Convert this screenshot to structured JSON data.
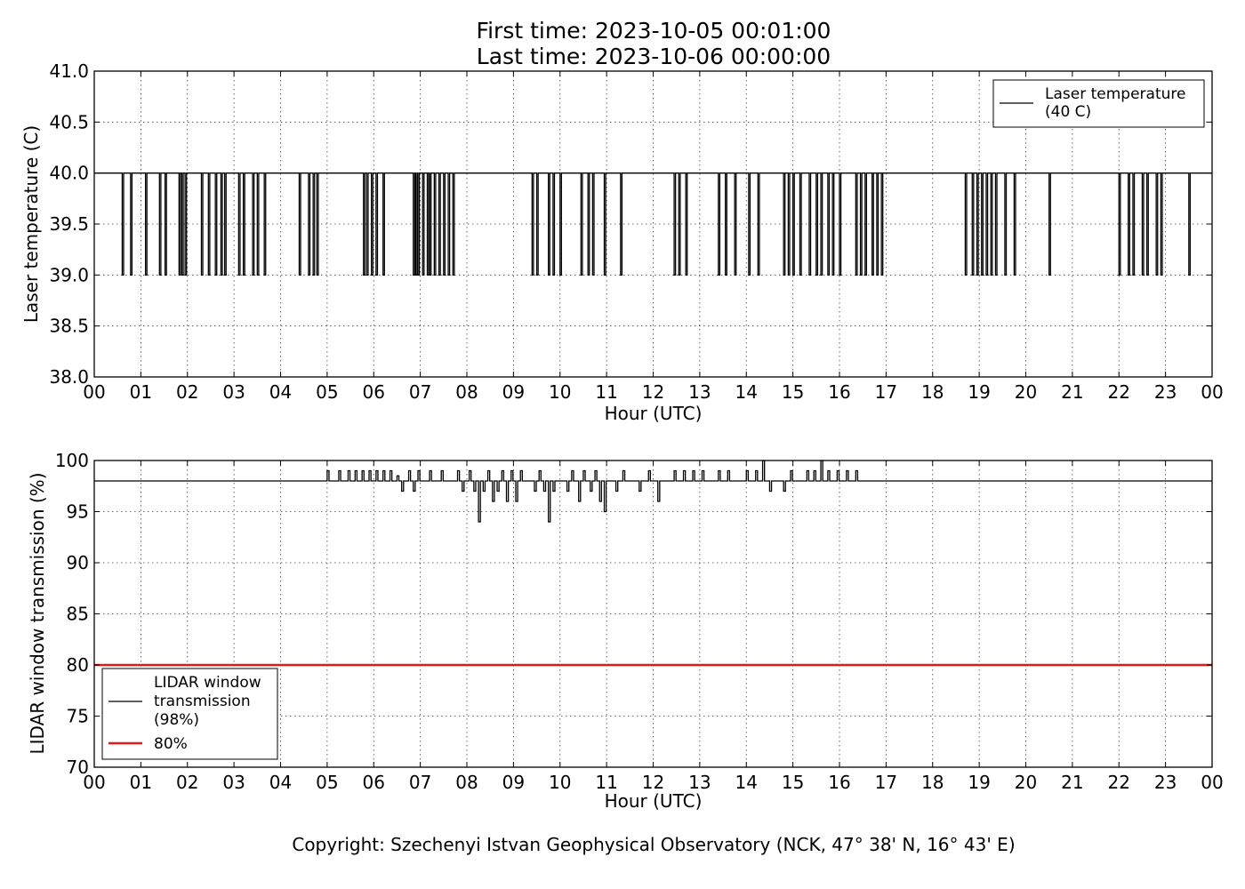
{
  "title": {
    "line1": "First time: 2023-10-05 00:01:00",
    "line2": "Last time: 2023-10-06 00:00:00"
  },
  "copyright": "Copyright: Szechenyi Istvan Geophysical Observatory (NCK, 47° 38' N, 16° 43' E)",
  "chart_data": [
    {
      "type": "line",
      "xlabel": "Hour (UTC)",
      "ylabel": "Laser temperature (C)",
      "xlim": [
        0,
        24
      ],
      "ylim": [
        38.0,
        41.0
      ],
      "x_ticks": [
        "00",
        "01",
        "02",
        "03",
        "04",
        "05",
        "06",
        "07",
        "08",
        "09",
        "10",
        "11",
        "12",
        "13",
        "14",
        "15",
        "16",
        "17",
        "18",
        "19",
        "20",
        "21",
        "22",
        "23",
        "00"
      ],
      "y_ticks": [
        "38.0",
        "38.5",
        "39.0",
        "39.5",
        "40.0",
        "40.5",
        "41.0"
      ],
      "grid": true,
      "legend_position": "top-right",
      "baseline": 40.0,
      "dip_value": 39.0,
      "series": [
        {
          "name": "Laser temperature (40 C)",
          "name_lines": [
            "Laser temperature",
            "(40 C)"
          ],
          "color": "#000000",
          "dips_hours": [
            0.6,
            0.78,
            1.1,
            1.4,
            1.52,
            1.82,
            1.88,
            1.95,
            2.3,
            2.45,
            2.6,
            2.72,
            2.8,
            3.1,
            3.2,
            3.4,
            3.5,
            3.65,
            4.4,
            4.6,
            4.7,
            4.78,
            5.78,
            5.85,
            5.95,
            6.05,
            6.2,
            6.85,
            6.9,
            6.95,
            7.05,
            7.15,
            7.2,
            7.3,
            7.4,
            7.5,
            7.6,
            7.7,
            9.4,
            9.5,
            9.75,
            9.85,
            10.0,
            10.45,
            10.6,
            10.7,
            10.95,
            11.3,
            12.45,
            12.55,
            12.7,
            13.4,
            13.55,
            13.75,
            14.05,
            14.25,
            14.8,
            14.9,
            15.0,
            15.15,
            15.35,
            15.5,
            15.6,
            15.75,
            15.85,
            16.0,
            16.35,
            16.45,
            16.55,
            16.7,
            16.8,
            16.9,
            18.7,
            18.85,
            18.95,
            19.05,
            19.15,
            19.25,
            19.35,
            19.55,
            19.75,
            20.5,
            22.0,
            22.2,
            22.3,
            22.5,
            22.6,
            22.8,
            22.9,
            23.5
          ]
        }
      ]
    },
    {
      "type": "line",
      "xlabel": "Hour (UTC)",
      "ylabel": "LIDAR window transmission (%)",
      "xlim": [
        0,
        24
      ],
      "ylim": [
        70,
        100
      ],
      "x_ticks": [
        "00",
        "01",
        "02",
        "03",
        "04",
        "05",
        "06",
        "07",
        "08",
        "09",
        "10",
        "11",
        "12",
        "13",
        "14",
        "15",
        "16",
        "17",
        "18",
        "19",
        "20",
        "21",
        "22",
        "23",
        "00"
      ],
      "y_ticks": [
        "70",
        "75",
        "80",
        "85",
        "90",
        "95",
        "100"
      ],
      "grid": true,
      "legend_position": "lower-left",
      "baseline": 98,
      "active_hours": [
        4.95,
        16.45
      ],
      "series": [
        {
          "name": "LIDAR window transmission (98%)",
          "name_lines": [
            "LIDAR window",
            "transmission",
            "(98%)"
          ],
          "color": "#000000",
          "deviations": [
            [
              5.0,
              99
            ],
            [
              5.25,
              99
            ],
            [
              5.45,
              99
            ],
            [
              5.6,
              99
            ],
            [
              5.75,
              99
            ],
            [
              5.9,
              99
            ],
            [
              6.05,
              99
            ],
            [
              6.2,
              99
            ],
            [
              6.35,
              99
            ],
            [
              6.5,
              98.5
            ],
            [
              6.6,
              97
            ],
            [
              6.75,
              99
            ],
            [
              6.85,
              97
            ],
            [
              6.95,
              99
            ],
            [
              7.2,
              99
            ],
            [
              7.45,
              99
            ],
            [
              7.65,
              98
            ],
            [
              7.8,
              99
            ],
            [
              7.9,
              97
            ],
            [
              8.05,
              99
            ],
            [
              8.15,
              97
            ],
            [
              8.25,
              94
            ],
            [
              8.35,
              97
            ],
            [
              8.45,
              99
            ],
            [
              8.55,
              96
            ],
            [
              8.65,
              97
            ],
            [
              8.75,
              99
            ],
            [
              8.85,
              96
            ],
            [
              8.95,
              99
            ],
            [
              9.05,
              96
            ],
            [
              9.15,
              99
            ],
            [
              9.3,
              98
            ],
            [
              9.45,
              97
            ],
            [
              9.55,
              99
            ],
            [
              9.65,
              97
            ],
            [
              9.75,
              94
            ],
            [
              9.85,
              97
            ],
            [
              10.0,
              98
            ],
            [
              10.15,
              97
            ],
            [
              10.25,
              99
            ],
            [
              10.4,
              96
            ],
            [
              10.5,
              99
            ],
            [
              10.65,
              97
            ],
            [
              10.75,
              99
            ],
            [
              10.85,
              96
            ],
            [
              10.95,
              95
            ],
            [
              11.05,
              98
            ],
            [
              11.2,
              97
            ],
            [
              11.35,
              99
            ],
            [
              11.5,
              98
            ],
            [
              11.7,
              97
            ],
            [
              11.9,
              99
            ],
            [
              12.0,
              98
            ],
            [
              12.1,
              96
            ],
            [
              12.25,
              98
            ],
            [
              12.45,
              99
            ],
            [
              12.65,
              99
            ],
            [
              12.85,
              99
            ],
            [
              13.05,
              99
            ],
            [
              13.2,
              98
            ],
            [
              13.4,
              99
            ],
            [
              13.6,
              99
            ],
            [
              13.8,
              98
            ],
            [
              14.0,
              99
            ],
            [
              14.2,
              99
            ],
            [
              14.35,
              100
            ],
            [
              14.5,
              97
            ],
            [
              14.65,
              98
            ],
            [
              14.8,
              97
            ],
            [
              14.95,
              99
            ],
            [
              15.15,
              98
            ],
            [
              15.3,
              99
            ],
            [
              15.45,
              99
            ],
            [
              15.6,
              100
            ],
            [
              15.75,
              99
            ],
            [
              15.95,
              99
            ],
            [
              16.15,
              99
            ],
            [
              16.35,
              99
            ]
          ]
        },
        {
          "name": "80%",
          "name_lines": [
            "80%"
          ],
          "color": "#e31a1c",
          "constant": 80
        }
      ]
    }
  ]
}
